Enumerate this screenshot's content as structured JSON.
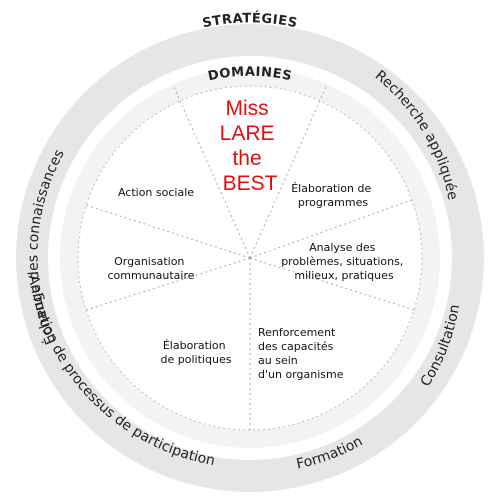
{
  "headers": {
    "strategies": "STRATÉGIES",
    "domaines": "DOMAINES"
  },
  "strategies": [
    "Recherche appliquée",
    "Consultation",
    "Formation",
    "Animation de processus de participation",
    "Échange des connaissances"
  ],
  "domaines": [
    {
      "lines": [
        "Élaboration de",
        "programmes"
      ]
    },
    {
      "lines": [
        "Analyse des",
        "problèmes, situations,",
        "milieux, pratiques"
      ]
    },
    {
      "lines": [
        "Renforcement",
        "des capacités",
        "au sein",
        "d'un organisme"
      ]
    },
    {
      "lines": [
        "Élaboration",
        "de politiques"
      ]
    },
    {
      "lines": [
        "Organisation",
        "communautaire"
      ]
    },
    {
      "lines": [
        "Action sociale"
      ]
    }
  ],
  "overlay": {
    "lines": [
      "Miss",
      "LARE",
      "the",
      "BEST"
    ]
  },
  "colors": {
    "outer_ring": "#e6e6e6",
    "inner_ring": "#f3f3f3",
    "overlay_text": "#e01010"
  }
}
